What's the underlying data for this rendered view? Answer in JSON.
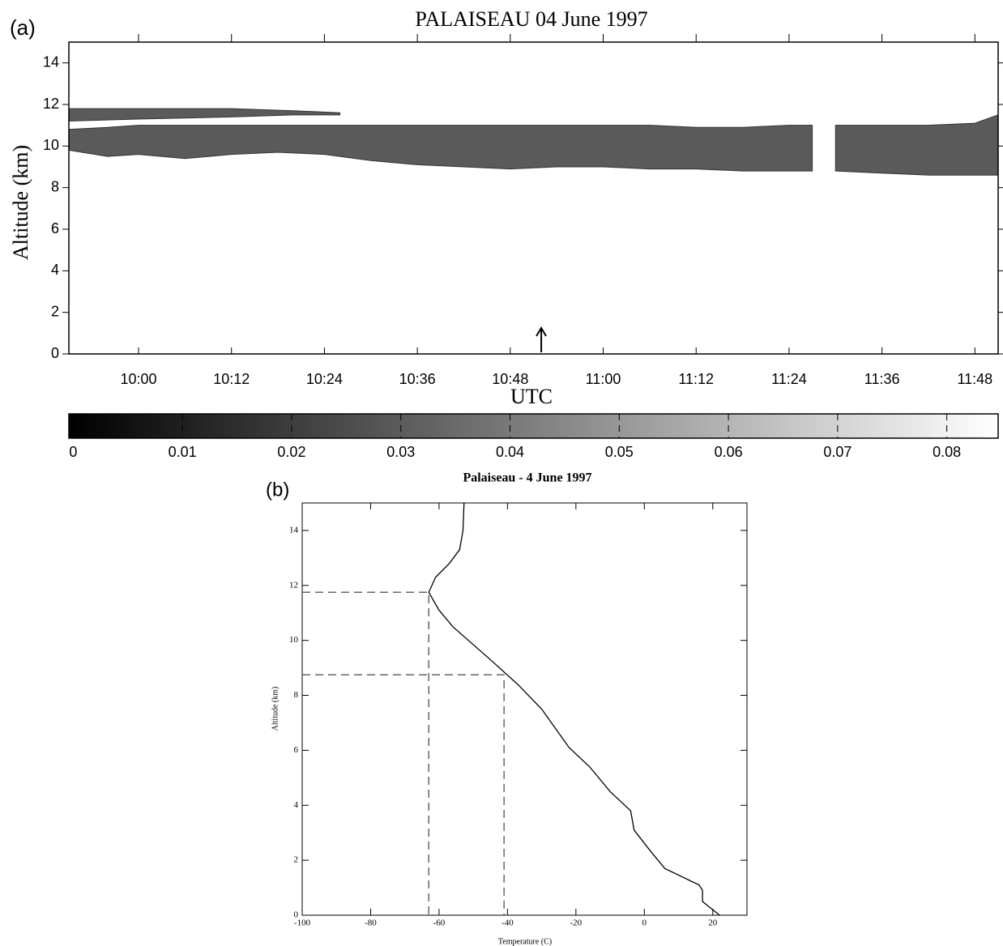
{
  "chart_data": [
    {
      "type": "cloud-section",
      "panel_label": "(a)",
      "title": "PALAISEAU  04 June 1997",
      "xlabel": "UTC",
      "ylabel": "Altitude (km)",
      "xlim": [
        591,
        711
      ],
      "ylim": [
        0,
        15
      ],
      "xticks": [
        {
          "value": 600,
          "label": "10:00"
        },
        {
          "value": 612,
          "label": "10:12"
        },
        {
          "value": 624,
          "label": "10:24"
        },
        {
          "value": 636,
          "label": "10:36"
        },
        {
          "value": 648,
          "label": "10:48"
        },
        {
          "value": 660,
          "label": "11:00"
        },
        {
          "value": 672,
          "label": "11:12"
        },
        {
          "value": 684,
          "label": "11:24"
        },
        {
          "value": 696,
          "label": "11:36"
        },
        {
          "value": 708,
          "label": "11:48"
        }
      ],
      "yticks": [
        0,
        2,
        4,
        6,
        8,
        10,
        12,
        14
      ],
      "arrow_x": 652,
      "color": "#5a5a5a",
      "layers": [
        {
          "x": [
            591,
            600,
            612,
            620,
            626
          ],
          "base": [
            11.2,
            11.3,
            11.4,
            11.5,
            11.5
          ],
          "top": [
            11.8,
            11.8,
            11.8,
            11.7,
            11.6
          ]
        },
        {
          "x": [
            591,
            596,
            600,
            606,
            612,
            618,
            624,
            630,
            636,
            642,
            648,
            654,
            660,
            666,
            672,
            678,
            684,
            687,
            null,
            690,
            696,
            702,
            708,
            711
          ],
          "base": [
            9.8,
            9.5,
            9.6,
            9.4,
            9.6,
            9.7,
            9.6,
            9.3,
            9.1,
            9.0,
            8.9,
            9.0,
            9.0,
            8.9,
            8.9,
            8.8,
            8.8,
            8.8,
            null,
            8.8,
            8.7,
            8.6,
            8.6,
            8.6
          ],
          "top": [
            10.8,
            10.9,
            11.0,
            11.0,
            11.0,
            11.0,
            11.0,
            11.0,
            11.0,
            11.0,
            11.0,
            11.0,
            11.0,
            11.0,
            10.9,
            10.9,
            11.0,
            11.0,
            null,
            11.0,
            11.0,
            11.0,
            11.1,
            11.5
          ]
        }
      ]
    },
    {
      "type": "colorbar",
      "clim": [
        -0.0004,
        0.0847
      ],
      "ticks": [
        0,
        0.01,
        0.02,
        0.03,
        0.04,
        0.05,
        0.06,
        0.07,
        0.08
      ]
    },
    {
      "type": "line",
      "panel_label": "(b)",
      "title": "Palaiseau - 4 June 1997",
      "xlabel": "Temperature (C)",
      "ylabel": "Altitude (km)",
      "xlim": [
        -100,
        30
      ],
      "ylim": [
        0,
        15
      ],
      "xticks": [
        -100,
        -80,
        -60,
        -40,
        -20,
        0,
        20
      ],
      "yticks": [
        0,
        2,
        4,
        6,
        8,
        10,
        12,
        14
      ],
      "color": "#000000",
      "x": [
        22,
        19,
        17,
        17,
        16,
        6,
        2,
        -3,
        -4,
        -10,
        -16,
        -22,
        -30,
        -37,
        -45,
        -56,
        -60,
        -63,
        -61,
        -57,
        -54,
        -53,
        -52.7
      ],
      "values": [
        0,
        0.3,
        0.5,
        0.9,
        1.1,
        1.7,
        2.3,
        3.1,
        3.8,
        4.5,
        5.4,
        6.1,
        7.5,
        8.4,
        9.3,
        10.5,
        11.1,
        11.75,
        12.3,
        12.8,
        13.3,
        14,
        15
      ],
      "reference_lines": [
        {
          "x": -63,
          "y": 11.75
        },
        {
          "x": -41,
          "y": 8.75
        }
      ]
    }
  ]
}
